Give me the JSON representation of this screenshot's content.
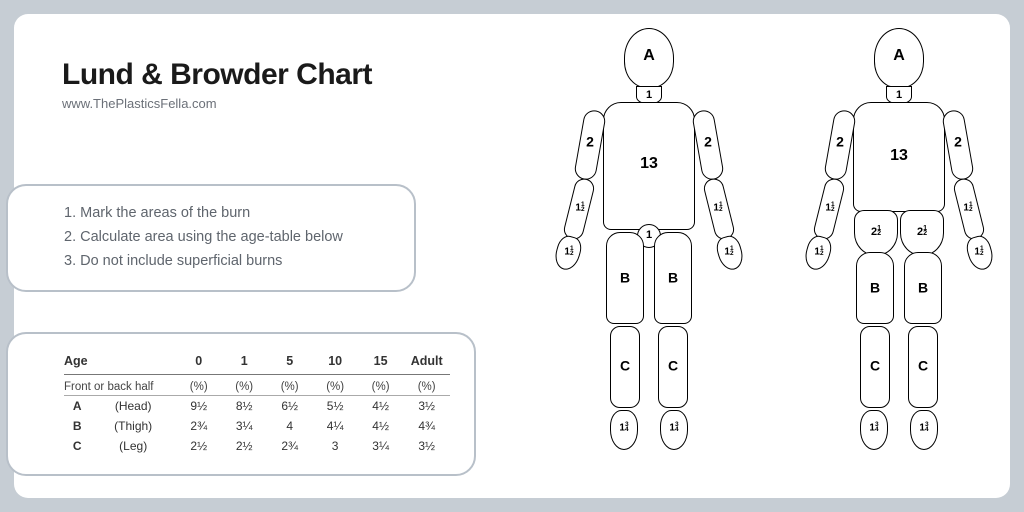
{
  "colors": {
    "page_bg": "#c6cdd4",
    "card_bg": "#ffffff",
    "panel_border": "#b8c0c9",
    "text_primary": "#1a1a1a",
    "text_muted": "#6b7078",
    "outline": "#000000"
  },
  "header": {
    "title": "Lund & Browder Chart",
    "subtitle": "www.ThePlasticsFella.com"
  },
  "instructions": {
    "line1": "1.  Mark the areas of the burn",
    "line2": "2.  Calculate area using the age-table below",
    "line3": "3.  Do not include superficial burns"
  },
  "age_table": {
    "age_label": "Age",
    "columns": [
      "0",
      "1",
      "5",
      "10",
      "15",
      "Adult"
    ],
    "subhead_label": "Front or back half",
    "pct_label": "(%)",
    "rows": [
      {
        "key": "A",
        "name": "(Head)",
        "v": [
          "9½",
          "8½",
          "6½",
          "5½",
          "4½",
          "3½"
        ]
      },
      {
        "key": "B",
        "name": "(Thigh)",
        "v": [
          "2¾",
          "3¼",
          "4",
          "4¼",
          "4½",
          "4¾"
        ]
      },
      {
        "key": "C",
        "name": "(Leg)",
        "v": [
          "2½",
          "2½",
          "2¾",
          "3",
          "3¼",
          "3½"
        ]
      }
    ]
  },
  "body_labels": {
    "head": "A",
    "neck": "1",
    "torso": "13",
    "upper_arm": "2",
    "forearm_html": "1<span class='frac'>1<br>2</span>",
    "hand_html": "1<span class='frac'>1<br>2</span>",
    "groin": "1",
    "thigh": "B",
    "shin": "C",
    "foot_html": "1<span class='frac'>3<br>4</span>",
    "buttock_html": "2<span class='frac'>1<br>2</span>"
  }
}
